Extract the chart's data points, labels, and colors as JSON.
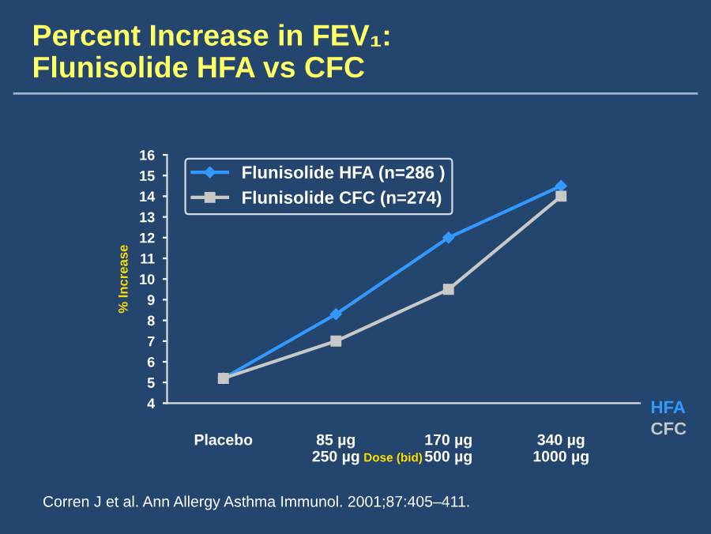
{
  "chart_data": {
    "type": "line",
    "title": "Percent Increase in FEV₁:\nFlunisolide HFA vs CFC",
    "xlabel": "Dose (bid)",
    "ylabel": "% Increase",
    "categories": [
      "Placebo",
      "85 µg\n250 µg",
      "170 µg\n500 µg",
      "340 µg\n1000 µg"
    ],
    "series": [
      {
        "name": "Flunisolide HFA (n=286 )",
        "color": "#3399ff",
        "marker": "diamond",
        "values": [
          5.2,
          8.3,
          12.0,
          14.5
        ]
      },
      {
        "name": "Flunisolide CFC (n=274)",
        "color": "#c8c8c8",
        "marker": "square",
        "values": [
          5.2,
          7.0,
          9.5,
          14.0
        ]
      }
    ],
    "ylim": [
      4,
      16
    ],
    "yticks": [
      4,
      5,
      6,
      7,
      8,
      9,
      10,
      11,
      12,
      13,
      14,
      15,
      16
    ],
    "grid": false,
    "legend": "top left",
    "annotations": [
      "HFA",
      "CFC",
      "Corren J et al. Ann Allergy Asthma Immunol. 2001;87:405–411."
    ]
  }
}
